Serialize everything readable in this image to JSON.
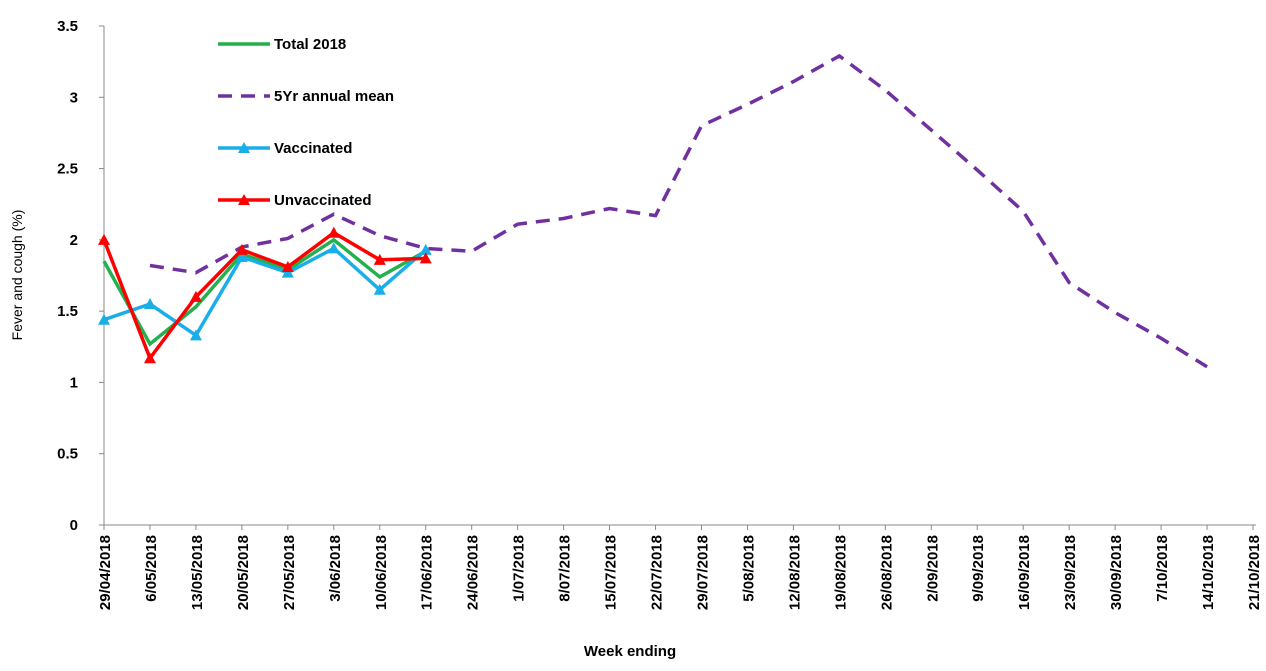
{
  "chart_data": {
    "type": "line",
    "x_label": "Week ending",
    "y_label": "Fever and cough (%)",
    "categories": [
      "29/04/2018",
      "6/05/2018",
      "13/05/2018",
      "20/05/2018",
      "27/05/2018",
      "3/06/2018",
      "10/06/2018",
      "17/06/2018",
      "24/06/2018",
      "1/07/2018",
      "8/07/2018",
      "15/07/2018",
      "22/07/2018",
      "29/07/2018",
      "5/08/2018",
      "12/08/2018",
      "19/08/2018",
      "26/08/2018",
      "2/09/2018",
      "9/09/2018",
      "16/09/2018",
      "23/09/2018",
      "30/09/2018",
      "7/10/2018",
      "14/10/2018",
      "21/10/2018"
    ],
    "series": [
      {
        "name": "Total 2018",
        "color": "#22b14c",
        "dash": false,
        "marker": "none",
        "values": [
          1.85,
          1.27,
          1.53,
          1.9,
          1.79,
          2.0,
          1.74,
          1.92,
          null,
          null,
          null,
          null,
          null,
          null,
          null,
          null,
          null,
          null,
          null,
          null,
          null,
          null,
          null,
          null,
          null,
          null
        ]
      },
      {
        "name": "5Yr annual mean",
        "color": "#7030a0",
        "dash": true,
        "marker": "none",
        "values": [
          null,
          1.82,
          1.77,
          1.95,
          2.01,
          2.18,
          2.03,
          1.94,
          1.92,
          2.11,
          2.15,
          2.22,
          2.17,
          2.8,
          2.95,
          3.11,
          3.29,
          3.05,
          2.77,
          2.49,
          2.2,
          1.7,
          1.49,
          1.31,
          1.11,
          null
        ]
      },
      {
        "name": "Vaccinated",
        "color": "#1aaee8",
        "dash": false,
        "marker": "triangle",
        "values": [
          1.44,
          1.55,
          1.33,
          1.88,
          1.77,
          1.94,
          1.65,
          1.93,
          null,
          null,
          null,
          null,
          null,
          null,
          null,
          null,
          null,
          null,
          null,
          null,
          null,
          null,
          null,
          null,
          null,
          null
        ]
      },
      {
        "name": "Unvaccinated",
        "color": "#ff0000",
        "dash": false,
        "marker": "triangle",
        "values": [
          2.0,
          1.17,
          1.6,
          1.93,
          1.81,
          2.05,
          1.86,
          1.87,
          null,
          null,
          null,
          null,
          null,
          null,
          null,
          null,
          null,
          null,
          null,
          null,
          null,
          null,
          null,
          null,
          null,
          null
        ]
      }
    ],
    "ylim": [
      0,
      3.5
    ],
    "yticks": [
      0,
      0.5,
      1,
      1.5,
      2,
      2.5,
      3,
      3.5
    ],
    "grid": false,
    "legend": "upper-left"
  }
}
